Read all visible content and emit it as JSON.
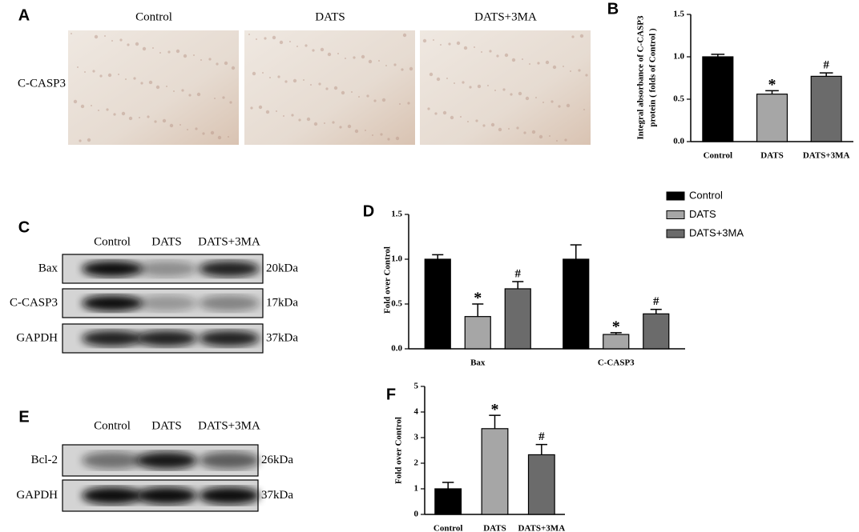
{
  "panel_a": {
    "label": "A",
    "columns": [
      "Control",
      "DATS",
      "DATS+3MA"
    ],
    "row": "C-CASP3"
  },
  "panel_c": {
    "label": "C",
    "columns": [
      "Control",
      "DATS",
      "DATS+3MA"
    ],
    "rows": [
      {
        "name": "Bax",
        "size": "20kDa"
      },
      {
        "name": "C-CASP3",
        "size": "17kDa"
      },
      {
        "name": "GAPDH",
        "size": "37kDa"
      }
    ]
  },
  "panel_e": {
    "label": "E",
    "columns": [
      "Control",
      "DATS",
      "DATS+3MA"
    ],
    "rows": [
      {
        "name": "Bcl-2",
        "size": "26kDa"
      },
      {
        "name": "GAPDH",
        "size": "37kDa"
      }
    ]
  },
  "chart_data": [
    {
      "type": "bar",
      "panel": "B",
      "y_label": [
        "Integral absorbance of C-CASP3",
        "protein ( folds of Control )"
      ],
      "categories": [
        "Control",
        "DATS",
        "DATS+3MA"
      ],
      "values": [
        1.0,
        0.56,
        0.77
      ],
      "errors": [
        0.03,
        0.04,
        0.04
      ],
      "colors": [
        "#000000",
        "#a6a6a6",
        "#6b6b6b"
      ],
      "marks": [
        null,
        "*",
        "#"
      ],
      "ylim": [
        0,
        1.5
      ],
      "yticks": [
        {
          "value": 0,
          "label": "0.0"
        },
        {
          "value": 0.5,
          "label": "0.5"
        },
        {
          "value": 1,
          "label": "1.0"
        },
        {
          "value": 1.5,
          "label": "1.5"
        }
      ]
    },
    {
      "type": "grouped_bar",
      "panel": "D",
      "y_label": "Fold over Control",
      "categories": [
        "Bax",
        "C-CASP3"
      ],
      "series": [
        {
          "name": "Control",
          "color": "#000000",
          "values": [
            1.0,
            1.0
          ],
          "errors": [
            0.05,
            0.16
          ],
          "marks": [
            null,
            null
          ]
        },
        {
          "name": "DATS",
          "color": "#a6a6a6",
          "values": [
            0.36,
            0.16
          ],
          "errors": [
            0.14,
            0.02
          ],
          "marks": [
            "*",
            "*"
          ]
        },
        {
          "name": "DATS+3MA",
          "color": "#6b6b6b",
          "values": [
            0.67,
            0.39
          ],
          "errors": [
            0.08,
            0.05
          ],
          "marks": [
            "#",
            "#"
          ]
        }
      ],
      "legend": "upper right",
      "ylim": [
        0,
        1.5
      ],
      "yticks": [
        {
          "value": 0,
          "label": "0.0"
        },
        {
          "value": 0.5,
          "label": "0.5"
        },
        {
          "value": 1,
          "label": "1.0"
        },
        {
          "value": 1.5,
          "label": "1.5"
        }
      ]
    },
    {
      "type": "bar",
      "panel": "F",
      "y_label": "Fold over Control",
      "categories": [
        "Control",
        "DATS",
        "DATS+3MA"
      ],
      "values": [
        1.0,
        3.35,
        2.33
      ],
      "errors": [
        0.25,
        0.52,
        0.4
      ],
      "colors": [
        "#000000",
        "#a6a6a6",
        "#6b6b6b"
      ],
      "marks": [
        null,
        "*",
        "#"
      ],
      "ylim": [
        0,
        5
      ],
      "yticks": [
        0,
        1,
        2,
        3,
        4,
        5
      ]
    }
  ]
}
